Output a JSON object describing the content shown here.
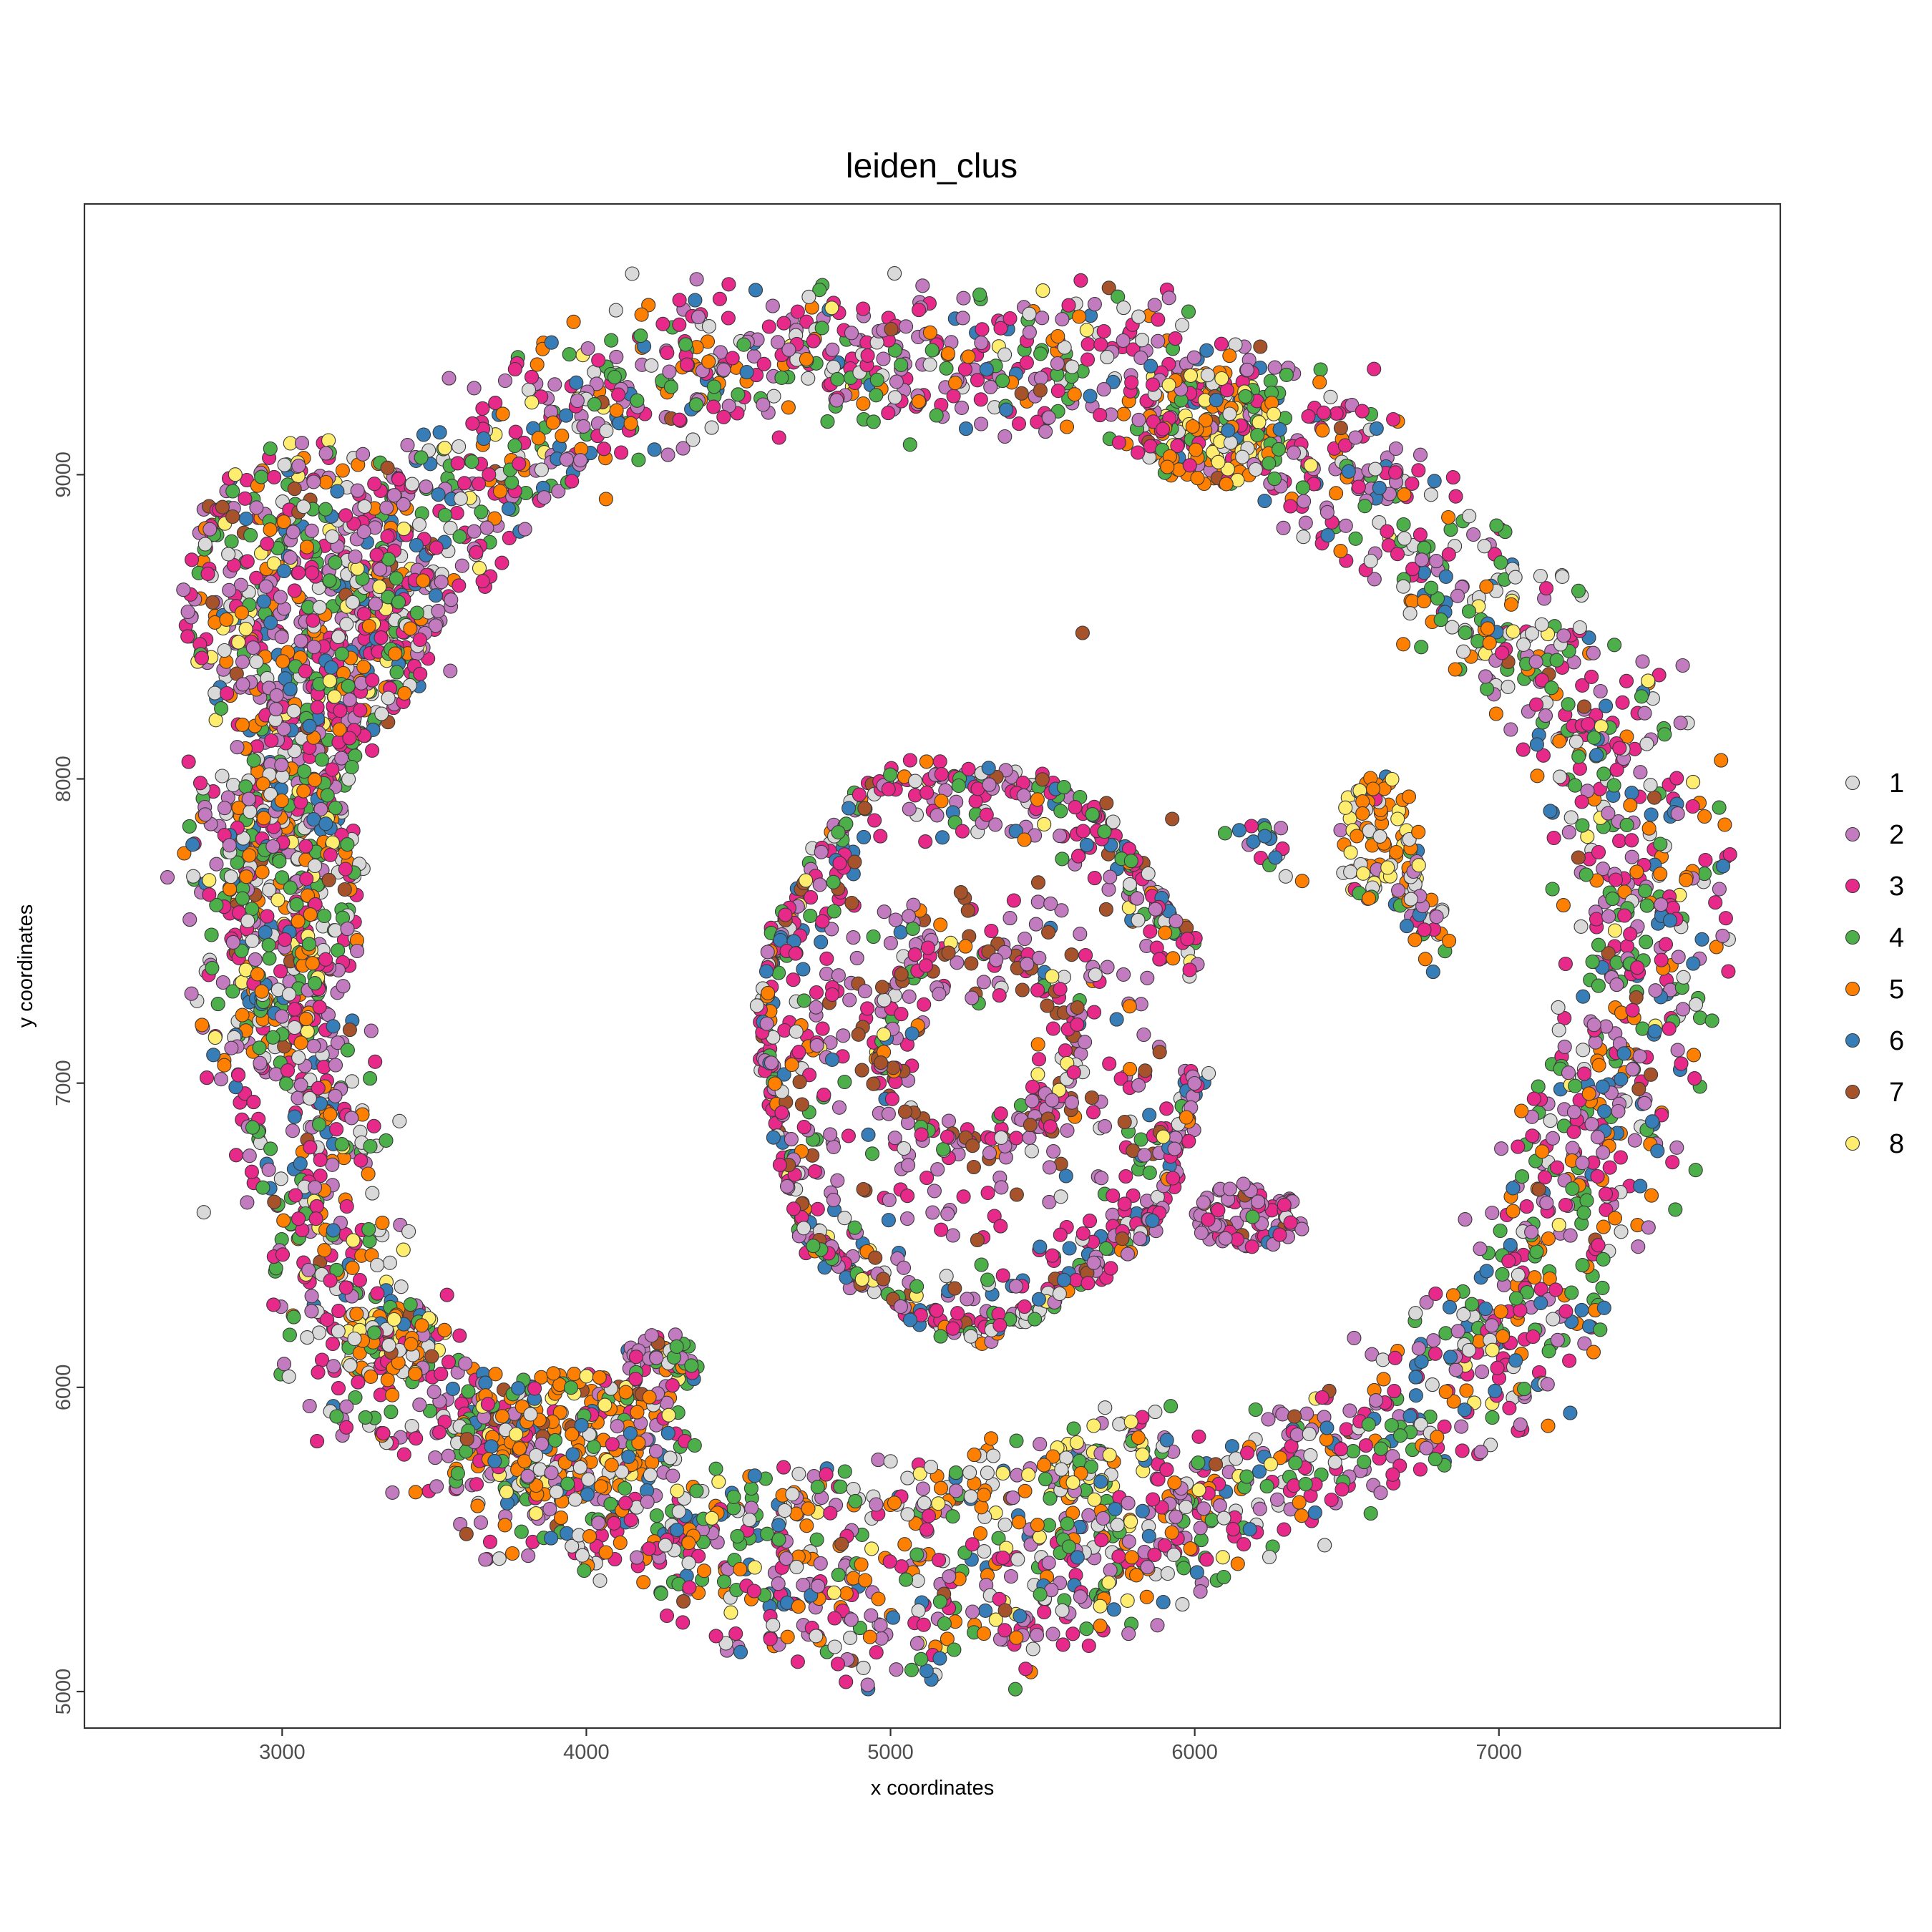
{
  "chart_data": {
    "type": "scatter",
    "title": "leiden_clus",
    "xlabel": "x coordinates",
    "ylabel": "y coordinates",
    "xlim": [
      2350,
      7925
    ],
    "ylim": [
      4880,
      9890
    ],
    "xticks": [
      3000,
      4000,
      5000,
      6000,
      7000
    ],
    "yticks": [
      5000,
      6000,
      7000,
      8000,
      9000
    ],
    "grid": false,
    "legend_position": "right",
    "point_outline": "#3a3a3a",
    "series": [
      {
        "name": "1",
        "color": "#d9d9d9"
      },
      {
        "name": "2",
        "color": "#c27bbf"
      },
      {
        "name": "3",
        "color": "#e7298a"
      },
      {
        "name": "4",
        "color": "#4daf4a"
      },
      {
        "name": "5",
        "color": "#ff7f00"
      },
      {
        "name": "6",
        "color": "#377eb8"
      },
      {
        "name": "7",
        "color": "#a6522b"
      },
      {
        "name": "8",
        "color": "#ffed6f"
      }
    ],
    "point_groups": [
      {
        "shape": "ring",
        "cx": 5160,
        "cy": 7380,
        "rx": 2400,
        "ry": 2180,
        "theta": [
          0.1,
          6.383
        ],
        "bands": [
          [
            0.0,
            0.035
          ],
          [
            -0.06,
            0.03
          ],
          [
            -0.115,
            0.03
          ]
        ],
        "weights": [
          0.12,
          0.2,
          0.24,
          0.17,
          0.12,
          0.1,
          0.02,
          0.03
        ],
        "count": 3300
      },
      {
        "shape": "blob",
        "cx": 3100,
        "cy": 8600,
        "rx": 430,
        "ry": 520,
        "weights": [
          0.13,
          0.2,
          0.2,
          0.16,
          0.13,
          0.08,
          0.03,
          0.07
        ],
        "count": 520
      },
      {
        "shape": "blob",
        "cx": 3040,
        "cy": 7650,
        "rx": 230,
        "ry": 520,
        "weights": [
          0.16,
          0.16,
          0.18,
          0.16,
          0.18,
          0.06,
          0.03,
          0.07
        ],
        "count": 260
      },
      {
        "shape": "blob",
        "cx": 6050,
        "cy": 9150,
        "rx": 230,
        "ry": 190,
        "weights": [
          0.1,
          0.06,
          0.12,
          0.07,
          0.33,
          0.05,
          0.02,
          0.25
        ],
        "count": 160
      },
      {
        "shape": "blob",
        "cx": 3950,
        "cy": 5850,
        "rx": 380,
        "ry": 200,
        "weights": [
          0.12,
          0.06,
          0.08,
          0.14,
          0.34,
          0.1,
          0.03,
          0.13
        ],
        "count": 240
      },
      {
        "shape": "blob",
        "cx": 3350,
        "cy": 6150,
        "rx": 170,
        "ry": 130,
        "weights": [
          0.15,
          0.05,
          0.1,
          0.12,
          0.3,
          0.05,
          0.03,
          0.2
        ],
        "count": 90
      },
      {
        "shape": "blob",
        "cx": 4250,
        "cy": 6070,
        "rx": 130,
        "ry": 110,
        "weights": [
          0.08,
          0.3,
          0.16,
          0.26,
          0.1,
          0.06,
          0.02,
          0.02
        ],
        "count": 60
      },
      {
        "shape": "band",
        "from": [
          4250,
          5570
        ],
        "to": [
          5500,
          5700
        ],
        "width": 70,
        "weights": [
          0.18,
          0.1,
          0.12,
          0.1,
          0.28,
          0.08,
          0.02,
          0.12
        ],
        "count": 140
      },
      {
        "shape": "band",
        "from": [
          5500,
          5700
        ],
        "to": [
          5890,
          5820
        ],
        "width": 75,
        "weights": [
          0.15,
          0.12,
          0.1,
          0.14,
          0.12,
          0.05,
          0.02,
          0.3
        ],
        "count": 90
      },
      {
        "shape": "ring",
        "cx": 5290,
        "cy": 7120,
        "rx": 710,
        "ry": 910,
        "theta": [
          0.25,
          6.2
        ],
        "bands": [
          [
            0.0,
            0.025
          ]
        ],
        "weights": [
          0.12,
          0.2,
          0.3,
          0.14,
          0.06,
          0.1,
          0.05,
          0.03
        ],
        "count": 560
      },
      {
        "shape": "ring",
        "cx": 5290,
        "cy": 7120,
        "rx": 620,
        "ry": 810,
        "theta": [
          0.3,
          6.1
        ],
        "bands": [
          [
            0.0,
            0.06
          ]
        ],
        "weights": [
          0.1,
          0.24,
          0.3,
          0.12,
          0.06,
          0.1,
          0.05,
          0.03
        ],
        "count": 220
      },
      {
        "shape": "ring",
        "cx": 5280,
        "cy": 7130,
        "rx": 320,
        "ry": 320,
        "theta": [
          0.0,
          6.283
        ],
        "bands": [
          [
            0.0,
            0.08
          ]
        ],
        "weights": [
          0.06,
          0.22,
          0.3,
          0.08,
          0.04,
          0.04,
          0.24,
          0.02
        ],
        "count": 120
      },
      {
        "shape": "ring",
        "cx": 5270,
        "cy": 7070,
        "rx": 580,
        "ry": 560,
        "theta": [
          0.0,
          6.283
        ],
        "bands": [
          [
            0.0,
            0.35
          ]
        ],
        "weights": [
          0.06,
          0.36,
          0.32,
          0.05,
          0.03,
          0.04,
          0.12,
          0.02
        ],
        "count": 260
      },
      {
        "shape": "blob",
        "cx": 6180,
        "cy": 6560,
        "rx": 190,
        "ry": 110,
        "weights": [
          0.05,
          0.55,
          0.3,
          0.03,
          0.02,
          0.03,
          0.02,
          0.0
        ],
        "count": 90
      },
      {
        "shape": "blob",
        "cx": 6610,
        "cy": 7800,
        "rx": 140,
        "ry": 220,
        "weights": [
          0.2,
          0.05,
          0.05,
          0.1,
          0.3,
          0.05,
          0.0,
          0.25
        ],
        "count": 90
      },
      {
        "shape": "band",
        "from": [
          6680,
          7650
        ],
        "to": [
          6820,
          7480
        ],
        "width": 60,
        "weights": [
          0.25,
          0.15,
          0.1,
          0.1,
          0.25,
          0.1,
          0.0,
          0.05
        ],
        "count": 40
      },
      {
        "shape": "band",
        "from": [
          6100,
          7830
        ],
        "to": [
          6300,
          7760
        ],
        "width": 30,
        "weights": [
          0.1,
          0.1,
          0.2,
          0.25,
          0.1,
          0.25,
          0.0,
          0.0
        ],
        "count": 18
      },
      {
        "shape": "scatter",
        "cx": 5300,
        "cy": 7500,
        "rx": 2300,
        "ry": 2200,
        "weights": [
          0.05,
          0.05,
          0.1,
          0.1,
          0.1,
          0.1,
          0.5,
          0.0
        ],
        "count": 10
      }
    ]
  }
}
